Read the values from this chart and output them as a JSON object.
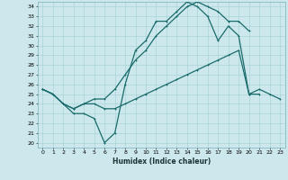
{
  "xlabel": "Humidex (Indice chaleur)",
  "bg_color": "#cce8ec",
  "grid_color": "#aad4d8",
  "line_color": "#1a6b6b",
  "xlim": [
    -0.5,
    23.5
  ],
  "ylim": [
    19.5,
    34.5
  ],
  "xticks": [
    0,
    1,
    2,
    3,
    4,
    5,
    6,
    7,
    8,
    9,
    10,
    11,
    12,
    13,
    14,
    15,
    16,
    17,
    18,
    19,
    20,
    21,
    22,
    23
  ],
  "yticks": [
    20,
    21,
    22,
    23,
    24,
    25,
    26,
    27,
    28,
    29,
    30,
    31,
    32,
    33,
    34
  ],
  "line1_x": [
    0,
    1,
    2,
    3,
    4,
    5,
    6,
    7,
    8,
    9,
    10,
    11,
    12,
    13,
    14,
    15,
    16,
    17,
    18,
    19,
    20,
    21
  ],
  "line1_y": [
    25.5,
    25.0,
    24.0,
    23.0,
    23.0,
    22.5,
    20.0,
    21.0,
    26.0,
    29.5,
    30.5,
    32.5,
    32.5,
    33.5,
    34.5,
    34.0,
    33.0,
    30.5,
    32.0,
    31.0,
    25.0,
    25.0
  ],
  "line2_x": [
    0,
    1,
    2,
    3,
    4,
    5,
    6,
    7,
    8,
    9,
    10,
    11,
    12,
    13,
    14,
    15,
    16,
    17,
    18,
    19,
    20
  ],
  "line2_y": [
    25.5,
    25.0,
    24.0,
    23.5,
    24.0,
    24.5,
    24.5,
    25.5,
    27.0,
    28.5,
    29.5,
    31.0,
    32.0,
    33.0,
    34.0,
    34.5,
    34.0,
    33.5,
    32.5,
    32.5,
    31.5
  ],
  "line3_x": [
    0,
    1,
    2,
    3,
    4,
    5,
    6,
    7,
    8,
    9,
    10,
    11,
    12,
    13,
    14,
    15,
    16,
    17,
    18,
    19,
    20,
    21,
    22,
    23
  ],
  "line3_y": [
    25.5,
    25.0,
    24.0,
    23.5,
    24.0,
    24.0,
    23.5,
    23.5,
    24.0,
    24.5,
    25.0,
    25.5,
    26.0,
    26.5,
    27.0,
    27.5,
    28.0,
    28.5,
    29.0,
    29.5,
    25.0,
    25.5,
    25.0,
    24.5
  ]
}
